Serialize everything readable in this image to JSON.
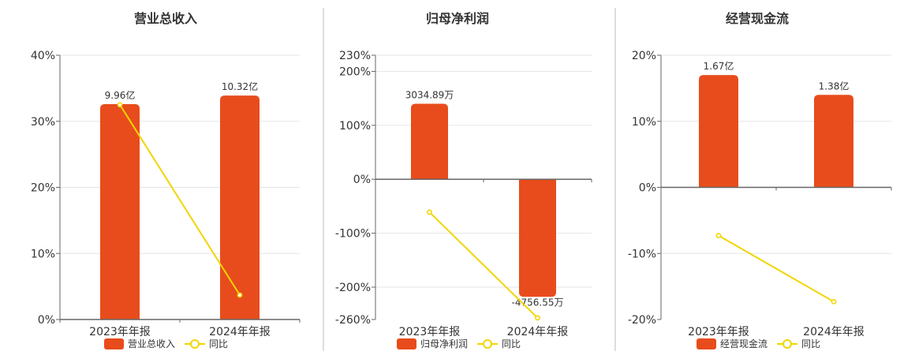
{
  "colors": {
    "bar": "#E84C1C",
    "line": "#F2D500",
    "grid": "#e6e6e6",
    "axis": "#666666",
    "divider": "#bbbbbb"
  },
  "chart_data": [
    {
      "type": "bar",
      "title": "营业总收入",
      "categories": [
        "2023年年报",
        "2024年年报"
      ],
      "ylim": [
        0,
        40
      ],
      "yticks": [
        "0%",
        "10%",
        "20%",
        "30%",
        "40%"
      ],
      "ytick_values": [
        0,
        10,
        20,
        30,
        40
      ],
      "series": [
        {
          "name": "营业总收入",
          "kind": "bar",
          "values": [
            32.6,
            33.9
          ],
          "labels": [
            "9.96亿",
            "10.32亿"
          ]
        },
        {
          "name": "同比",
          "kind": "line",
          "values": [
            32.5,
            3.7
          ]
        }
      ],
      "legend": "bottom-center",
      "grid": true
    },
    {
      "type": "bar",
      "title": "归母净利润",
      "categories": [
        "2023年年报",
        "2024年年报"
      ],
      "ylim": [
        -260,
        230
      ],
      "yticks": [
        "-260%",
        "-200%",
        "-100%",
        "0%",
        "100%",
        "200%",
        "230%"
      ],
      "ytick_values": [
        -260,
        -200,
        -100,
        0,
        100,
        200,
        230
      ],
      "series": [
        {
          "name": "归母净利润",
          "kind": "bar",
          "values": [
            140,
            -218
          ],
          "labels": [
            "3034.89万",
            "-4756.55万"
          ]
        },
        {
          "name": "同比",
          "kind": "line",
          "values": [
            -61,
            -257
          ]
        }
      ],
      "legend": "bottom-center",
      "grid": true
    },
    {
      "type": "bar",
      "title": "经营现金流",
      "categories": [
        "2023年年报",
        "2024年年报"
      ],
      "ylim": [
        -20,
        20
      ],
      "yticks": [
        "-20%",
        "-10%",
        "0%",
        "10%",
        "20%"
      ],
      "ytick_values": [
        -20,
        -10,
        0,
        10,
        20
      ],
      "series": [
        {
          "name": "经营现金流",
          "kind": "bar",
          "values": [
            17,
            14
          ],
          "labels": [
            "1.67亿",
            "1.38亿"
          ]
        },
        {
          "name": "同比",
          "kind": "line",
          "values": [
            -7.3,
            -17.3
          ]
        }
      ],
      "legend": "bottom-center",
      "grid": true
    }
  ]
}
